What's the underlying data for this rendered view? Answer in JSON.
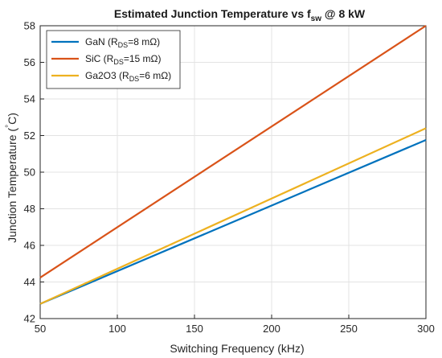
{
  "chart_data": {
    "type": "line",
    "title": {
      "prefix": "Estimated Junction Temperature vs f",
      "subscript": "sw",
      "suffix": " @ 8 kW"
    },
    "xlabel": "Switching Frequency (kHz)",
    "ylabel": {
      "prefix": "Junction Temperature (",
      "superscript": "°",
      "suffix": "C)"
    },
    "xlim": [
      50,
      300
    ],
    "ylim": [
      42,
      58
    ],
    "xticks": [
      50,
      100,
      150,
      200,
      250,
      300
    ],
    "yticks": [
      42,
      44,
      46,
      48,
      50,
      52,
      54,
      56,
      58
    ],
    "grid": true,
    "legend_position": "top-left",
    "series": [
      {
        "name": {
          "prefix": "GaN (R",
          "subscript": "DS",
          "suffix": "=8 mΩ)"
        },
        "color": "#0072BD",
        "x": [
          50,
          300
        ],
        "y": [
          42.8,
          51.76
        ]
      },
      {
        "name": {
          "prefix": "SiC (R",
          "subscript": "DS",
          "suffix": "=15 mΩ)"
        },
        "color": "#D95319",
        "x": [
          50,
          300
        ],
        "y": [
          44.24,
          58.0
        ]
      },
      {
        "name": {
          "prefix": "Ga2O3 (R",
          "subscript": "DS",
          "suffix": "=6 mΩ)"
        },
        "color": "#EDB120",
        "x": [
          50,
          300
        ],
        "y": [
          42.8,
          52.4
        ]
      }
    ]
  }
}
